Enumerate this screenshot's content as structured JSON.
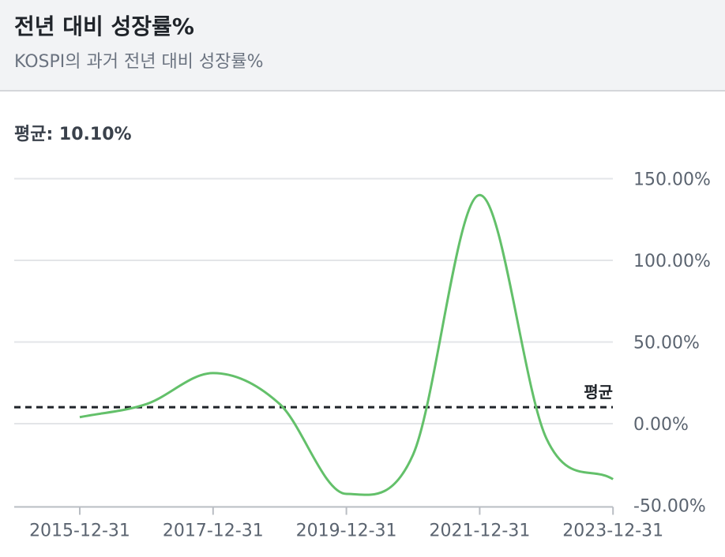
{
  "header": {
    "title": "전년 대비 성장률%",
    "subtitle": "KOSPI의 과거 전년 대비 성장률%"
  },
  "average": {
    "label": "평균: 10.10%",
    "line_label": "평균",
    "value": 10.1
  },
  "chart_data": {
    "type": "line",
    "title": "",
    "xlabel": "",
    "ylabel": "",
    "x": [
      "2015-12-31",
      "2016-12-31",
      "2017-12-31",
      "2018-12-31",
      "2019-12-31",
      "2020-12-31",
      "2021-12-31",
      "2022-12-31",
      "2023-12-31"
    ],
    "series": [
      {
        "values": [
          4,
          12,
          31,
          12,
          -43,
          -19,
          140,
          -9,
          -34
        ]
      }
    ],
    "x_tick_labels": [
      "2015-12-31",
      "2017-12-31",
      "2019-12-31",
      "2021-12-31",
      "2023-12-31"
    ],
    "y_ticks": [
      -50,
      0,
      50,
      100,
      150
    ],
    "y_tick_labels": [
      "-50.00%",
      "0.00%",
      "50.00%",
      "100.00%",
      "150.00%"
    ],
    "ylim": [
      -50,
      150
    ],
    "y_axis_position": "right",
    "grid": true,
    "average_line": 10.1,
    "colors": {
      "line": "#63c06a",
      "grid": "#e3e5e8",
      "average": "#1f2329",
      "axis": "#b9bdc3"
    }
  }
}
